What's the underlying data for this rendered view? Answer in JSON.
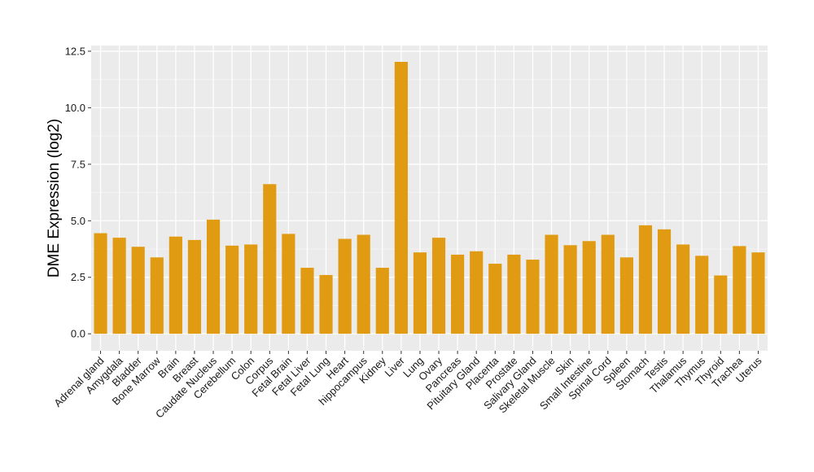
{
  "chart_data": {
    "type": "bar",
    "title": "",
    "xlabel": "",
    "ylabel": "DME Expression (log2)",
    "ylim": [
      -0.75,
      12.75
    ],
    "yticks": [
      0.0,
      2.5,
      5.0,
      7.5,
      10.0,
      12.5
    ],
    "ytick_labels": [
      "0.0",
      "2.5",
      "5.0",
      "7.5",
      "10.0",
      "12.5"
    ],
    "grid": true,
    "bar_color": "#E09B12",
    "panel_background": "#EBEBEB",
    "categories": [
      "Adrenal gland",
      "Amygdala",
      "Bladder",
      "Bone Marrow",
      "Brain",
      "Breast",
      "Caudate Nucleus",
      "Cerebellum",
      "Colon",
      "Corpus",
      "Fetal Brain",
      "Fetal Liver",
      "Fetal Lung",
      "Heart",
      "hippocampus",
      "Kidney",
      "Liver",
      "Lung",
      "Ovary",
      "Pancreas",
      "Pituitary Gland",
      "Placenta",
      "Prostate",
      "Salivary Gland",
      "Skeletal Muscle",
      "Skin",
      "Small Intestine",
      "Spinal Cord",
      "Spleen",
      "Stomach",
      "Testis",
      "Thalamus",
      "Thymus",
      "Thyroid",
      "Trachea",
      "Uterus"
    ],
    "values": [
      4.45,
      4.25,
      3.85,
      3.38,
      4.3,
      4.15,
      5.05,
      3.9,
      3.95,
      6.62,
      4.42,
      2.92,
      2.6,
      4.2,
      4.38,
      2.92,
      12.03,
      3.6,
      4.25,
      3.5,
      3.65,
      3.1,
      3.5,
      3.28,
      4.38,
      3.92,
      4.1,
      4.38,
      3.38,
      4.8,
      4.62,
      3.95,
      3.45,
      2.58,
      3.88,
      3.6
    ]
  }
}
